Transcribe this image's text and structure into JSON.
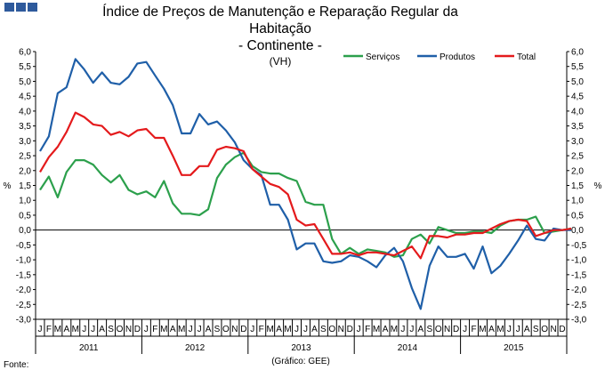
{
  "chart_data": {
    "type": "line",
    "title_lines": [
      "Índice de Preços de Manutenção e Reparação Regular da",
      "Habitação",
      "- Continente -"
    ],
    "subtitle": "(VH)",
    "ylabel_left": "%",
    "ylabel_right": "%",
    "ylim": [
      -3.0,
      6.0
    ],
    "y_ticks": [
      "6,0",
      "5,5",
      "5,0",
      "4,5",
      "4,0",
      "3,5",
      "3,0",
      "2,5",
      "2,0",
      "1,5",
      "1,0",
      "0,5",
      "0,0",
      "-0,5",
      "-1,0",
      "-1,5",
      "-2,0",
      "-2,5",
      "-3,0"
    ],
    "month_letters": [
      "J",
      "F",
      "M",
      "A",
      "M",
      "J",
      "J",
      "A",
      "S",
      "O",
      "N",
      "D"
    ],
    "years": [
      "2011",
      "2012",
      "2013",
      "2014",
      "2015"
    ],
    "source_label": "Fonte:",
    "credit": "(Gráfico: GEE)",
    "series": [
      {
        "name": "Serviços",
        "color": "#2ca04c",
        "values": [
          1.35,
          1.8,
          1.1,
          1.95,
          2.35,
          2.35,
          2.2,
          1.85,
          1.6,
          1.85,
          1.35,
          1.2,
          1.3,
          1.1,
          1.65,
          0.9,
          0.55,
          0.55,
          0.5,
          0.7,
          1.75,
          2.2,
          2.45,
          2.6,
          2.15,
          1.95,
          1.9,
          1.9,
          1.75,
          1.65,
          0.95,
          0.85,
          0.85,
          -0.3,
          -0.8,
          -0.6,
          -0.8,
          -0.65,
          -0.7,
          -0.75,
          -0.9,
          -0.85,
          -0.3,
          -0.15,
          -0.45,
          0.1,
          0.0,
          -0.1,
          -0.1,
          -0.05,
          -0.05,
          -0.1,
          0.15,
          0.3,
          0.35,
          0.35,
          0.45,
          -0.1,
          -0.05,
          0.0,
          0.05
        ]
      },
      {
        "name": "Produtos",
        "color": "#1f5fa8",
        "values": [
          2.65,
          3.15,
          4.6,
          4.8,
          5.75,
          5.4,
          4.95,
          5.3,
          4.95,
          4.9,
          5.15,
          5.6,
          5.65,
          5.2,
          4.75,
          4.2,
          3.25,
          3.25,
          3.9,
          3.55,
          3.65,
          3.35,
          2.95,
          2.35,
          2.05,
          1.85,
          0.85,
          0.85,
          0.35,
          -0.65,
          -0.45,
          -0.45,
          -1.05,
          -1.1,
          -1.05,
          -0.85,
          -0.9,
          -1.05,
          -1.25,
          -0.85,
          -0.6,
          -1.05,
          -1.95,
          -2.65,
          -1.2,
          -0.55,
          -0.9,
          -0.9,
          -0.8,
          -1.3,
          -0.55,
          -1.45,
          -1.2,
          -0.8,
          -0.35,
          0.15,
          -0.3,
          -0.35,
          0.05,
          0.0,
          0.0
        ]
      },
      {
        "name": "Total",
        "color": "#e41a1c",
        "values": [
          1.95,
          2.45,
          2.8,
          3.3,
          3.95,
          3.8,
          3.55,
          3.5,
          3.2,
          3.3,
          3.15,
          3.35,
          3.4,
          3.1,
          3.1,
          2.5,
          1.85,
          1.85,
          2.15,
          2.15,
          2.7,
          2.8,
          2.75,
          2.65,
          2.05,
          1.8,
          1.55,
          1.45,
          1.2,
          0.35,
          0.15,
          0.2,
          -0.3,
          -0.8,
          -0.8,
          -0.75,
          -0.85,
          -0.75,
          -0.75,
          -0.8,
          -0.85,
          -0.7,
          -0.55,
          -0.95,
          -0.2,
          -0.2,
          -0.25,
          -0.15,
          -0.15,
          -0.1,
          -0.1,
          0.05,
          0.2,
          0.3,
          0.35,
          0.3,
          -0.2,
          -0.1,
          0.0,
          0.0,
          0.05
        ]
      }
    ]
  }
}
